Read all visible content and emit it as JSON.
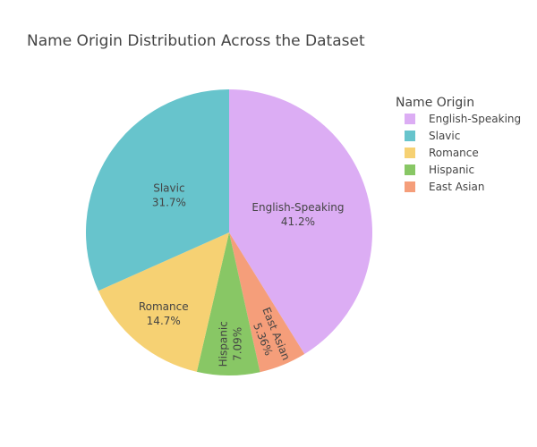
{
  "chart_data": {
    "type": "pie",
    "title": "Name Origin Distribution Across the Dataset",
    "legend_title": "Name Origin",
    "legend_position": "right",
    "start": "top, clockwise",
    "slices": [
      {
        "label": "English-Speaking",
        "percent_text": "41.2%",
        "value": 41.2,
        "color": "#dcadf4",
        "text_orientation": "horizontal"
      },
      {
        "label": "East Asian",
        "percent_text": "5.36%",
        "value": 5.36,
        "color": "#f59e7a",
        "text_orientation": "radial"
      },
      {
        "label": "Hispanic",
        "percent_text": "7.09%",
        "value": 7.09,
        "color": "#88c765",
        "text_orientation": "radial"
      },
      {
        "label": "Romance",
        "percent_text": "14.7%",
        "value": 14.7,
        "color": "#f6d173",
        "text_orientation": "horizontal"
      },
      {
        "label": "Slavic",
        "percent_text": "31.7%",
        "value": 31.7,
        "color": "#67c4cc",
        "text_orientation": "horizontal"
      }
    ],
    "legend_order": [
      "English-Speaking",
      "Slavic",
      "Romance",
      "Hispanic",
      "East Asian"
    ]
  }
}
